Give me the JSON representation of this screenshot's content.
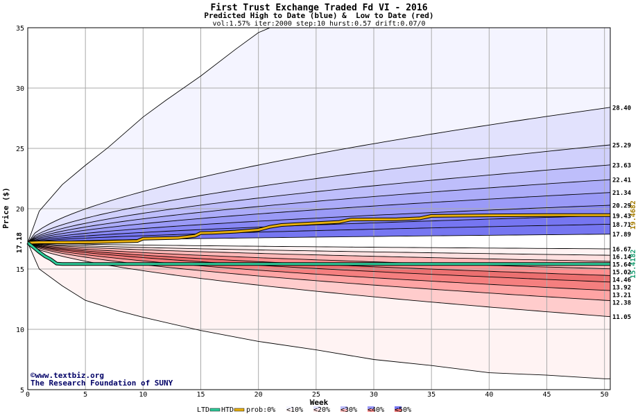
{
  "chart_data": {
    "type": "area",
    "title": "First Trust Exchange Traded Fd VI - 2016",
    "subtitle": "Predicted High to Date (blue) &  Low to Date (red)",
    "params": "vol:1.57% iter:2000 step:10 hurst:0.57 drift:0.07/0",
    "xlabel": "Week",
    "ylabel": "Price ($)",
    "xlim": [
      0,
      50.5
    ],
    "ylim": [
      5,
      35
    ],
    "xticks": [
      0,
      5,
      10,
      15,
      20,
      25,
      30,
      35,
      40,
      45,
      50
    ],
    "yticks": [
      5,
      10,
      15,
      20,
      25,
      30,
      35
    ],
    "grid": true,
    "start_price": 17.18,
    "start_label": "17.18",
    "high_bands": [
      {
        "end": 28.4,
        "label": "28.40"
      },
      {
        "end": 25.29,
        "label": "25.29"
      },
      {
        "end": 23.63,
        "label": "23.63"
      },
      {
        "end": 22.41,
        "label": "22.41"
      },
      {
        "end": 21.34,
        "label": "21.34"
      },
      {
        "end": 20.29,
        "label": "20.29"
      },
      {
        "end": 19.43,
        "label": "19.43"
      },
      {
        "end": 18.71,
        "label": "18.71"
      },
      {
        "end": 17.89,
        "label": "17.89"
      }
    ],
    "low_bands": [
      {
        "end": 16.67,
        "label": "16.67"
      },
      {
        "end": 16.14,
        "label": "16.14"
      },
      {
        "end": 15.64,
        "label": "15.64"
      },
      {
        "end": 15.02,
        "label": "15.02"
      },
      {
        "end": 14.46,
        "label": "14.46"
      },
      {
        "end": 13.92,
        "label": "13.92"
      },
      {
        "end": 13.21,
        "label": "13.21"
      },
      {
        "end": 12.38,
        "label": "12.38"
      },
      {
        "end": 11.05,
        "label": "11.05"
      }
    ],
    "outer_high": {
      "points": [
        [
          0,
          17.18
        ],
        [
          1,
          19.8
        ],
        [
          3,
          22.0
        ],
        [
          5,
          23.6
        ],
        [
          7,
          25.1
        ],
        [
          10,
          27.6
        ],
        [
          12,
          29.0
        ],
        [
          15,
          31.0
        ],
        [
          18,
          33.2
        ],
        [
          20,
          34.6
        ],
        [
          21,
          35.0
        ]
      ]
    },
    "outer_low": {
      "points": [
        [
          0,
          17.18
        ],
        [
          1,
          15.0
        ],
        [
          3,
          13.6
        ],
        [
          5,
          12.4
        ],
        [
          8,
          11.5
        ],
        [
          10,
          11.0
        ],
        [
          15,
          9.9
        ],
        [
          20,
          9.0
        ],
        [
          25,
          8.3
        ],
        [
          30,
          7.5
        ],
        [
          35,
          7.0
        ],
        [
          40,
          6.4
        ],
        [
          45,
          6.2
        ],
        [
          50,
          5.9
        ],
        [
          50.5,
          5.9
        ]
      ]
    },
    "htd_line": {
      "name": "HTD",
      "end_label": "19.4682",
      "points": [
        [
          0,
          17.18
        ],
        [
          1,
          17.21
        ],
        [
          3,
          17.21
        ],
        [
          5,
          17.22
        ],
        [
          8,
          17.28
        ],
        [
          9.5,
          17.32
        ],
        [
          10,
          17.52
        ],
        [
          13,
          17.58
        ],
        [
          14.5,
          17.75
        ],
        [
          15,
          17.98
        ],
        [
          16,
          18.0
        ],
        [
          18,
          18.1
        ],
        [
          20,
          18.25
        ],
        [
          21,
          18.5
        ],
        [
          22,
          18.65
        ],
        [
          25,
          18.8
        ],
        [
          27,
          18.9
        ],
        [
          28,
          19.1
        ],
        [
          32,
          19.12
        ],
        [
          34,
          19.2
        ],
        [
          35,
          19.4
        ],
        [
          40,
          19.45
        ],
        [
          45,
          19.47
        ],
        [
          50.5,
          19.47
        ]
      ]
    },
    "ltd_line": {
      "name": "LTD",
      "end_label": "15.4182",
      "points": [
        [
          0,
          17.18
        ],
        [
          0.5,
          16.8
        ],
        [
          1,
          16.4
        ],
        [
          1.5,
          16.05
        ],
        [
          2,
          15.8
        ],
        [
          2.5,
          15.45
        ],
        [
          3,
          15.42
        ],
        [
          5,
          15.42
        ],
        [
          8,
          15.42
        ],
        [
          15,
          15.42
        ],
        [
          25,
          15.42
        ],
        [
          35,
          15.42
        ],
        [
          50.5,
          15.42
        ]
      ]
    },
    "watermark": [
      "©www.textbiz.org",
      "The Research Foundation of SUNY"
    ],
    "legend": {
      "placement": "bottom-center",
      "items": [
        "LTD",
        "HTD",
        "prob:0%",
        "<10%",
        "<20%",
        "<30%",
        "<40%",
        "<50%"
      ]
    },
    "colors": {
      "htd": "#e8b00f",
      "ltd": "#2ecc9a",
      "high_label": "#a67c00",
      "low_label": "#1a9e72",
      "grid": "#aaaaaa",
      "blue_bands": [
        "#f4f4ff",
        "#e2e2fd",
        "#d0d0fc",
        "#bebefb",
        "#acacf9",
        "#9a9af7",
        "#8888f5",
        "#7676f1"
      ],
      "red_bands": [
        "#fff3f3",
        "#ffe0e0",
        "#ffcccc",
        "#ffb8b8",
        "#ffa4a4",
        "#ff9090",
        "#f57f7f",
        "#ec7070"
      ]
    }
  }
}
